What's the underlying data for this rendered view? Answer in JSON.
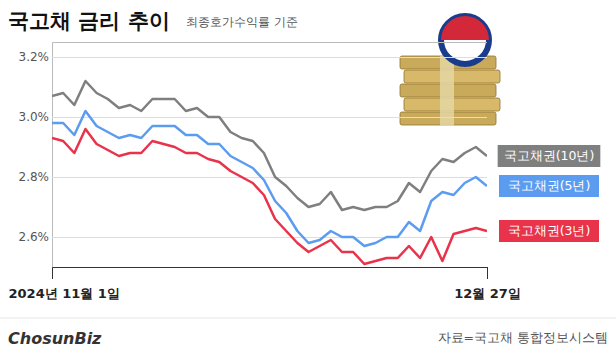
{
  "chart_data": {
    "type": "line",
    "title": "국고채 금리 추이",
    "subtitle": "최종호가수익률 기준",
    "source": "자료=국고채 통합정보시스템",
    "logo": "ChosunBiz",
    "categories": [
      "2024년 11월 1일",
      null,
      null,
      null,
      null,
      null,
      null,
      null,
      null,
      null,
      null,
      null,
      null,
      null,
      null,
      null,
      null,
      null,
      null,
      null,
      null,
      null,
      null,
      null,
      null,
      null,
      null,
      null,
      null,
      null,
      null,
      null,
      null,
      null,
      null,
      null,
      null,
      null,
      null,
      "12월 27일"
    ],
    "series": [
      {
        "name": "국고채권(10년)",
        "color": "#7f7f7f",
        "values": [
          3.07,
          3.08,
          3.04,
          3.12,
          3.08,
          3.06,
          3.03,
          3.04,
          3.02,
          3.06,
          3.06,
          3.06,
          3.02,
          3.03,
          3.0,
          3.0,
          2.95,
          2.93,
          2.92,
          2.88,
          2.8,
          2.77,
          2.73,
          2.7,
          2.71,
          2.75,
          2.69,
          2.7,
          2.69,
          2.7,
          2.7,
          2.72,
          2.78,
          2.75,
          2.82,
          2.86,
          2.85,
          2.88,
          2.9,
          2.87
        ]
      },
      {
        "name": "국고채권(5년)",
        "color": "#5b9cf0",
        "values": [
          2.98,
          2.98,
          2.94,
          3.02,
          2.97,
          2.95,
          2.93,
          2.94,
          2.93,
          2.97,
          2.97,
          2.97,
          2.94,
          2.94,
          2.91,
          2.91,
          2.87,
          2.85,
          2.83,
          2.79,
          2.72,
          2.68,
          2.62,
          2.58,
          2.59,
          2.62,
          2.6,
          2.6,
          2.57,
          2.58,
          2.6,
          2.6,
          2.65,
          2.62,
          2.72,
          2.75,
          2.74,
          2.78,
          2.8,
          2.77
        ]
      },
      {
        "name": "국고채권(3년)",
        "color": "#e8334a",
        "values": [
          2.93,
          2.92,
          2.88,
          2.96,
          2.91,
          2.89,
          2.87,
          2.88,
          2.88,
          2.92,
          2.91,
          2.9,
          2.88,
          2.88,
          2.86,
          2.85,
          2.82,
          2.8,
          2.78,
          2.74,
          2.66,
          2.62,
          2.58,
          2.55,
          2.57,
          2.59,
          2.55,
          2.55,
          2.51,
          2.52,
          2.53,
          2.53,
          2.57,
          2.53,
          2.6,
          2.52,
          2.61,
          2.62,
          2.63,
          2.62
        ]
      }
    ],
    "ylim": [
      2.5,
      3.25
    ],
    "yticks": [
      {
        "value": 2.6,
        "label": "2.6%"
      },
      {
        "value": 2.8,
        "label": "2.8%"
      },
      {
        "value": 3.0,
        "label": "3.0%"
      },
      {
        "value": 3.2,
        "label": "3.2%"
      }
    ],
    "grid": true
  }
}
